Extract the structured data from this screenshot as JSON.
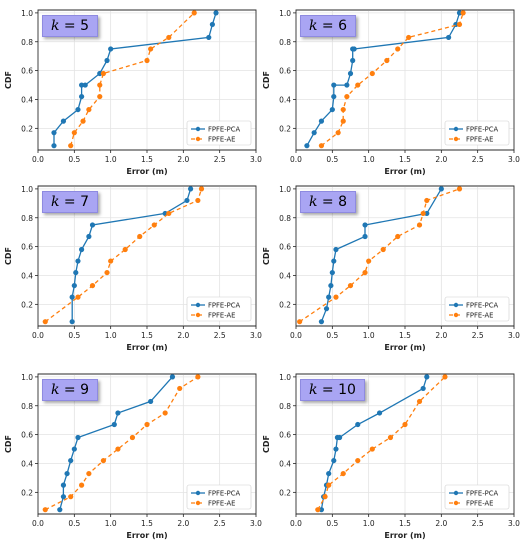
{
  "colors": {
    "pca": "#1f77b4",
    "ae": "#ff7f0e",
    "grid": "#e3e3e3",
    "kbox": "#a9a5f3"
  },
  "chart_data": [
    {
      "type": "line",
      "k_label": "k = 5",
      "xlabel": "Error (m)",
      "ylabel": "CDF",
      "xlim": [
        0.0,
        3.0
      ],
      "ylim": [
        0.05,
        1.02
      ],
      "xticks": [
        "0.0",
        "0.5",
        "1.0",
        "1.5",
        "2.0",
        "2.5",
        "3.0"
      ],
      "yticks": [
        "0.2",
        "0.4",
        "0.6",
        "0.8",
        "1.0"
      ],
      "grid": true,
      "legend": "bottom-right",
      "series": [
        {
          "name": "FPFE-PCA",
          "x": [
            0.22,
            0.22,
            0.35,
            0.55,
            0.6,
            0.6,
            0.65,
            0.85,
            0.95,
            1.0,
            2.35,
            2.4,
            2.45
          ],
          "y": [
            0.08,
            0.17,
            0.25,
            0.33,
            0.42,
            0.5,
            0.5,
            0.58,
            0.67,
            0.75,
            0.83,
            0.92,
            1.0
          ]
        },
        {
          "name": "FPFE-AE",
          "x": [
            0.45,
            0.5,
            0.62,
            0.7,
            0.85,
            0.85,
            0.9,
            1.5,
            1.55,
            1.8,
            2.15
          ],
          "y": [
            0.08,
            0.17,
            0.25,
            0.33,
            0.42,
            0.5,
            0.58,
            0.67,
            0.75,
            0.83,
            1.0
          ]
        }
      ]
    },
    {
      "type": "line",
      "k_label": "k = 6",
      "xlabel": "Error (m)",
      "ylabel": "CDF",
      "xlim": [
        0.0,
        3.0
      ],
      "ylim": [
        0.05,
        1.02
      ],
      "xticks": [
        "0.0",
        "0.5",
        "1.0",
        "1.5",
        "2.0",
        "2.5",
        "3.0"
      ],
      "yticks": [
        "0.2",
        "0.4",
        "0.6",
        "0.8",
        "1.0"
      ],
      "grid": true,
      "legend": "bottom-right",
      "series": [
        {
          "name": "FPFE-PCA",
          "x": [
            0.15,
            0.25,
            0.35,
            0.5,
            0.52,
            0.52,
            0.7,
            0.75,
            0.78,
            0.78,
            0.8,
            2.1,
            2.2,
            2.25
          ],
          "y": [
            0.08,
            0.17,
            0.25,
            0.33,
            0.42,
            0.5,
            0.5,
            0.58,
            0.67,
            0.75,
            0.75,
            0.83,
            0.92,
            1.0
          ]
        },
        {
          "name": "FPFE-AE",
          "x": [
            0.35,
            0.58,
            0.65,
            0.65,
            0.7,
            0.85,
            1.05,
            1.25,
            1.4,
            1.55,
            2.25,
            2.3
          ],
          "y": [
            0.08,
            0.17,
            0.25,
            0.33,
            0.42,
            0.5,
            0.58,
            0.67,
            0.75,
            0.83,
            0.92,
            1.0
          ]
        }
      ]
    },
    {
      "type": "line",
      "k_label": "k = 7",
      "xlabel": "Error (m)",
      "ylabel": "CDF",
      "xlim": [
        0.0,
        3.0
      ],
      "ylim": [
        0.05,
        1.02
      ],
      "xticks": [
        "0.0",
        "0.5",
        "1.0",
        "1.5",
        "2.0",
        "2.5",
        "3.0"
      ],
      "yticks": [
        "0.2",
        "0.4",
        "0.6",
        "0.8",
        "1.0"
      ],
      "grid": true,
      "legend": "bottom-right",
      "series": [
        {
          "name": "FPFE-PCA",
          "x": [
            0.47,
            0.47,
            0.5,
            0.52,
            0.55,
            0.6,
            0.7,
            0.75,
            1.75,
            2.05,
            2.1
          ],
          "y": [
            0.08,
            0.25,
            0.33,
            0.42,
            0.5,
            0.58,
            0.67,
            0.75,
            0.83,
            0.92,
            1.0
          ]
        },
        {
          "name": "FPFE-AE",
          "x": [
            0.1,
            0.55,
            0.75,
            0.95,
            1.0,
            1.2,
            1.4,
            1.6,
            1.8,
            2.2,
            2.25
          ],
          "y": [
            0.08,
            0.25,
            0.33,
            0.42,
            0.5,
            0.58,
            0.67,
            0.75,
            0.83,
            0.92,
            1.0
          ]
        }
      ]
    },
    {
      "type": "line",
      "k_label": "k = 8",
      "xlabel": "Error (m)",
      "ylabel": "CDF",
      "xlim": [
        0.0,
        3.0
      ],
      "ylim": [
        0.05,
        1.02
      ],
      "xticks": [
        "0.0",
        "0.5",
        "1.0",
        "1.5",
        "2.0",
        "2.5",
        "3.0"
      ],
      "yticks": [
        "0.2",
        "0.4",
        "0.6",
        "0.8",
        "1.0"
      ],
      "grid": true,
      "legend": "bottom-right",
      "series": [
        {
          "name": "FPFE-PCA",
          "x": [
            0.35,
            0.42,
            0.45,
            0.48,
            0.5,
            0.52,
            0.55,
            0.95,
            0.95,
            1.8,
            2.0
          ],
          "y": [
            0.08,
            0.17,
            0.25,
            0.33,
            0.42,
            0.5,
            0.58,
            0.67,
            0.75,
            0.83,
            1.0
          ]
        },
        {
          "name": "FPFE-AE",
          "x": [
            0.05,
            0.55,
            0.75,
            0.95,
            1.0,
            1.2,
            1.4,
            1.7,
            1.75,
            1.8,
            2.25
          ],
          "y": [
            0.08,
            0.25,
            0.33,
            0.42,
            0.5,
            0.58,
            0.67,
            0.75,
            0.83,
            0.92,
            1.0
          ]
        }
      ]
    },
    {
      "type": "line",
      "k_label": "k = 9",
      "xlabel": "Error (m)",
      "ylabel": "CDF",
      "xlim": [
        0.0,
        3.0
      ],
      "ylim": [
        0.05,
        1.02
      ],
      "xticks": [
        "0.0",
        "0.5",
        "1.0",
        "1.5",
        "2.0",
        "2.5",
        "3.0"
      ],
      "yticks": [
        "0.2",
        "0.4",
        "0.6",
        "0.8",
        "1.0"
      ],
      "grid": true,
      "legend": "bottom-right",
      "series": [
        {
          "name": "FPFE-PCA",
          "x": [
            0.3,
            0.35,
            0.35,
            0.4,
            0.45,
            0.5,
            0.55,
            1.05,
            1.1,
            1.55,
            1.85
          ],
          "y": [
            0.08,
            0.17,
            0.25,
            0.33,
            0.42,
            0.5,
            0.58,
            0.67,
            0.75,
            0.83,
            1.0
          ]
        },
        {
          "name": "FPFE-AE",
          "x": [
            0.1,
            0.45,
            0.6,
            0.7,
            0.9,
            1.1,
            1.3,
            1.5,
            1.75,
            1.95,
            2.2
          ],
          "y": [
            0.08,
            0.17,
            0.25,
            0.33,
            0.42,
            0.5,
            0.58,
            0.67,
            0.75,
            0.92,
            1.0
          ]
        }
      ]
    },
    {
      "type": "line",
      "k_label": "k = 10",
      "xlabel": "Error (m)",
      "ylabel": "CDF",
      "xlim": [
        0.0,
        3.0
      ],
      "ylim": [
        0.05,
        1.02
      ],
      "xticks": [
        "0.0",
        "0.5",
        "1.0",
        "1.5",
        "2.0",
        "2.5",
        "3.0"
      ],
      "yticks": [
        "0.2",
        "0.4",
        "0.6",
        "0.8",
        "1.0"
      ],
      "grid": true,
      "legend": "bottom-right",
      "series": [
        {
          "name": "FPFE-PCA",
          "x": [
            0.35,
            0.38,
            0.42,
            0.45,
            0.52,
            0.55,
            0.57,
            0.6,
            0.85,
            1.15,
            1.75,
            1.8
          ],
          "y": [
            0.08,
            0.17,
            0.25,
            0.33,
            0.42,
            0.5,
            0.58,
            0.58,
            0.67,
            0.75,
            0.92,
            1.0
          ]
        },
        {
          "name": "FPFE-AE",
          "x": [
            0.3,
            0.4,
            0.45,
            0.65,
            0.85,
            1.05,
            1.3,
            1.5,
            1.7,
            2.05
          ],
          "y": [
            0.08,
            0.17,
            0.25,
            0.33,
            0.42,
            0.5,
            0.58,
            0.67,
            0.83,
            1.0
          ]
        }
      ]
    }
  ]
}
